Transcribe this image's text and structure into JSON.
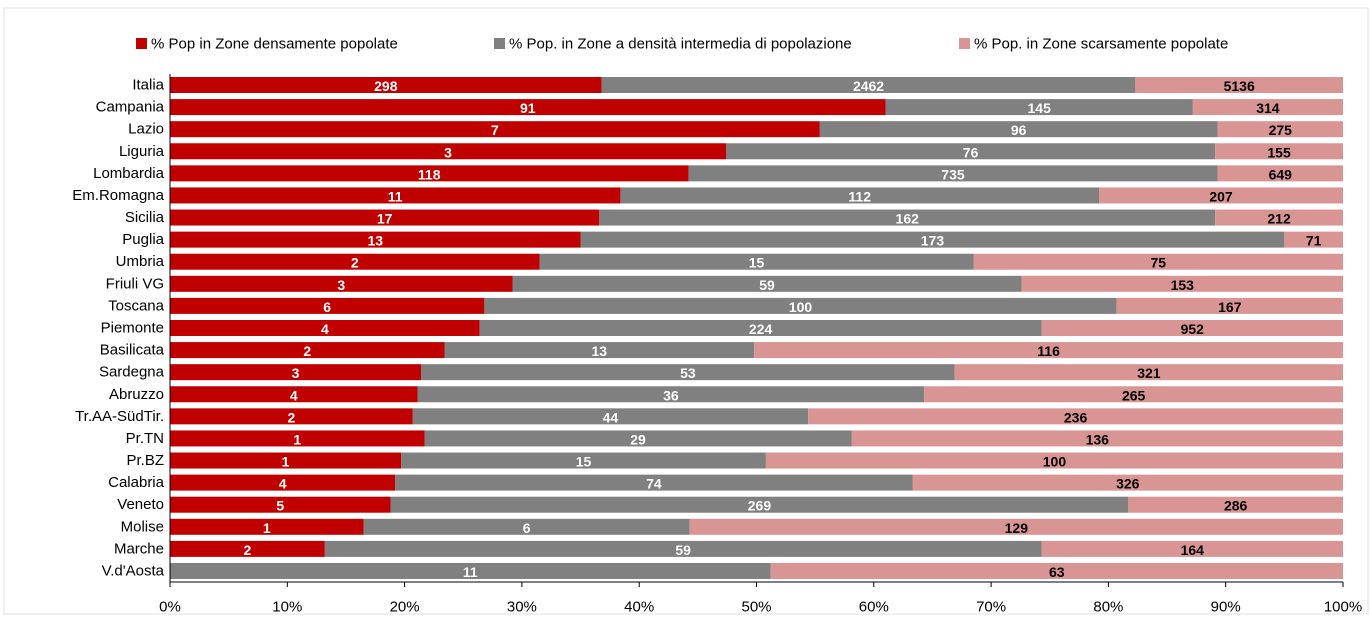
{
  "chart_data": {
    "type": "stacked-bar-horizontal",
    "categories": [
      "Italia",
      "Campania",
      "Lazio",
      "Liguria",
      "Lombardia",
      "Em.Romagna",
      "Sicilia",
      "Puglia",
      "Umbria",
      "Friuli VG",
      "Toscana",
      "Piemonte",
      "Basilicata",
      "Sardegna",
      "Abruzzo",
      "Tr.AA-SüdTir.",
      "Pr.TN",
      "Pr.BZ",
      "Calabria",
      "Veneto",
      "Molise",
      "Marche",
      "V.d'Aosta"
    ],
    "series": [
      {
        "name": "% Pop in Zone densamente popolate",
        "color": "#c00000",
        "label_color": "#ffffff",
        "values": [
          36.8,
          61.0,
          55.4,
          47.4,
          44.2,
          38.4,
          36.6,
          35.0,
          31.5,
          29.2,
          26.8,
          26.4,
          23.4,
          21.4,
          21.1,
          20.7,
          21.7,
          19.7,
          19.2,
          18.8,
          16.5,
          13.2,
          0
        ],
        "labels": [
          298,
          91,
          7,
          3,
          118,
          11,
          17,
          13,
          2,
          3,
          6,
          4,
          2,
          3,
          4,
          2,
          1,
          1,
          4,
          5,
          1,
          2,
          0
        ]
      },
      {
        "name": "% Pop. in Zone a densità intermedia di popolazione",
        "color": "#808080",
        "label_color": "#ffffff",
        "values": [
          45.5,
          26.2,
          33.9,
          41.7,
          45.1,
          40.8,
          52.5,
          60.0,
          37.0,
          43.4,
          53.9,
          47.9,
          26.4,
          45.5,
          43.2,
          33.7,
          36.4,
          31.1,
          44.1,
          62.9,
          27.8,
          61.1,
          51.2
        ],
        "labels": [
          2462,
          145,
          96,
          76,
          735,
          112,
          162,
          173,
          15,
          59,
          100,
          224,
          13,
          53,
          36,
          44,
          29,
          15,
          74,
          269,
          6,
          59,
          11
        ]
      },
      {
        "name": "% Pop. in Zone scarsamente popolate",
        "color": "#d99594",
        "label_color": "#000000",
        "values": [
          17.7,
          12.8,
          10.7,
          10.9,
          10.7,
          20.8,
          10.9,
          5.0,
          31.5,
          27.4,
          19.3,
          25.7,
          50.2,
          33.1,
          35.7,
          45.6,
          41.9,
          49.2,
          36.7,
          18.3,
          55.7,
          25.7,
          48.8
        ],
        "labels": [
          5136,
          314,
          275,
          155,
          649,
          207,
          212,
          71,
          75,
          153,
          167,
          952,
          116,
          321,
          265,
          236,
          136,
          100,
          326,
          286,
          129,
          164,
          63
        ]
      }
    ],
    "xlim": [
      0,
      100
    ],
    "xticks": [
      {
        "value": 0,
        "label": "0%"
      },
      {
        "value": 10,
        "label": "10%"
      },
      {
        "value": 20,
        "label": "20%"
      },
      {
        "value": 30,
        "label": "30%"
      },
      {
        "value": 40,
        "label": "40%"
      },
      {
        "value": 50,
        "label": "50%"
      },
      {
        "value": 60,
        "label": "60%"
      },
      {
        "value": 70,
        "label": "70%"
      },
      {
        "value": 80,
        "label": "80%"
      },
      {
        "value": 90,
        "label": "90%"
      },
      {
        "value": 100,
        "label": "100%"
      }
    ],
    "legend": "top"
  }
}
